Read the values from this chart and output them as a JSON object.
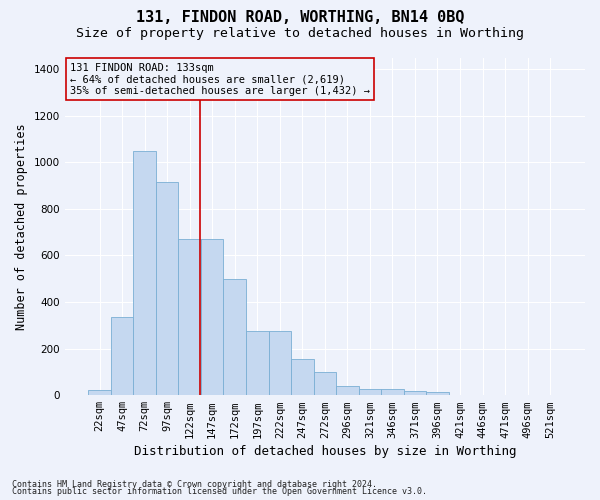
{
  "title": "131, FINDON ROAD, WORTHING, BN14 0BQ",
  "subtitle": "Size of property relative to detached houses in Worthing",
  "xlabel": "Distribution of detached houses by size in Worthing",
  "ylabel": "Number of detached properties",
  "footnote1": "Contains HM Land Registry data © Crown copyright and database right 2024.",
  "footnote2": "Contains public sector information licensed under the Open Government Licence v3.0.",
  "categories": [
    "22sqm",
    "47sqm",
    "72sqm",
    "97sqm",
    "122sqm",
    "147sqm",
    "172sqm",
    "197sqm",
    "222sqm",
    "247sqm",
    "272sqm",
    "296sqm",
    "321sqm",
    "346sqm",
    "371sqm",
    "396sqm",
    "421sqm",
    "446sqm",
    "471sqm",
    "496sqm",
    "521sqm"
  ],
  "values": [
    22,
    335,
    1050,
    915,
    670,
    670,
    500,
    275,
    275,
    155,
    100,
    38,
    25,
    25,
    18,
    12,
    0,
    0,
    0,
    0,
    0
  ],
  "bar_color": "#c5d8f0",
  "bar_edge_color": "#7aafd4",
  "vline_color": "#cc0000",
  "annotation_line1": "131 FINDON ROAD: 133sqm",
  "annotation_line2": "← 64% of detached houses are smaller (2,619)",
  "annotation_line3": "35% of semi-detached houses are larger (1,432) →",
  "annotation_box_color": "#cc0000",
  "ylim": [
    0,
    1450
  ],
  "yticks": [
    0,
    200,
    400,
    600,
    800,
    1000,
    1200,
    1400
  ],
  "background_color": "#eef2fb",
  "grid_color": "#ffffff",
  "title_fontsize": 11,
  "subtitle_fontsize": 9.5,
  "ylabel_fontsize": 8.5,
  "xlabel_fontsize": 9,
  "tick_fontsize": 7.5,
  "annot_fontsize": 7.5,
  "footnote_fontsize": 6
}
